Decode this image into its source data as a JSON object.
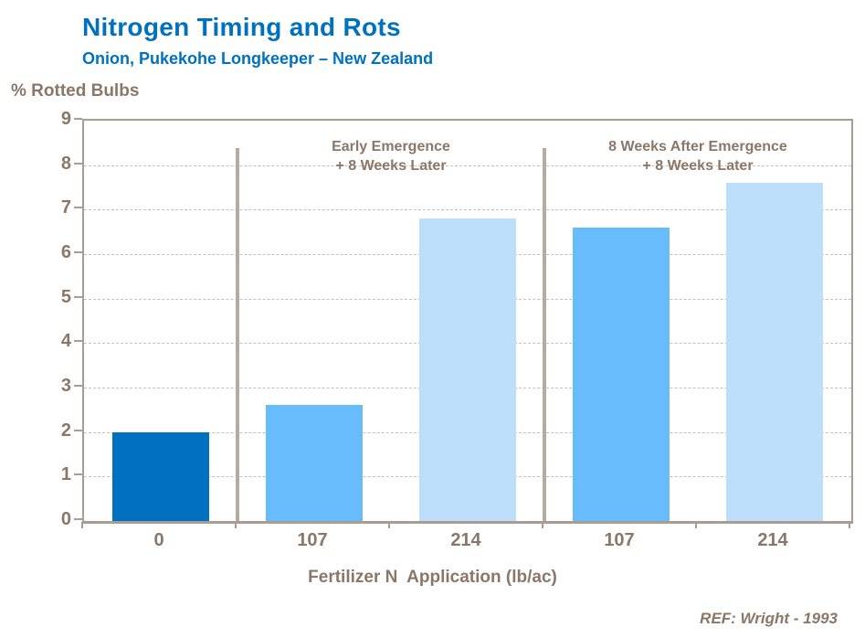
{
  "chart_data": {
    "type": "bar",
    "title": "Nitrogen Timing and Rots",
    "subtitle": "Onion, Pukekohe Longkeeper – New Zealand",
    "ylabel": "% Rotted Bulbs",
    "xlabel": "Fertilizer N  Application (lb/ac)",
    "ylim": [
      0,
      9
    ],
    "yticks": [
      0,
      1,
      2,
      3,
      4,
      5,
      6,
      7,
      8,
      9
    ],
    "grid": "horizontal-dashed",
    "legend": "none",
    "categories": [
      "0",
      "107",
      "214",
      "107",
      "214"
    ],
    "values": [
      2.0,
      2.6,
      6.8,
      6.6,
      7.6
    ],
    "bar_colors": [
      "#0070C0",
      "#67BCFB",
      "#BDDFFB",
      "#67BCFB",
      "#BDDFFB"
    ],
    "groups": [
      {
        "label_line1": "Early Emergence",
        "label_line2": "+ 8 Weeks Later",
        "category_indices": [
          1,
          2
        ]
      },
      {
        "label_line1": "8 Weeks After Emergence",
        "label_line2": "+ 8 Weeks Later",
        "category_indices": [
          3,
          4
        ]
      }
    ],
    "divider_boundaries": [
      1,
      3
    ],
    "reference": "REF: Wright - 1993",
    "colors": {
      "title": "#0070C0",
      "text": "#8A7768",
      "axis": "#A79D93",
      "gridline": "#C9BFB4",
      "divider": "#B5ABA1"
    }
  }
}
